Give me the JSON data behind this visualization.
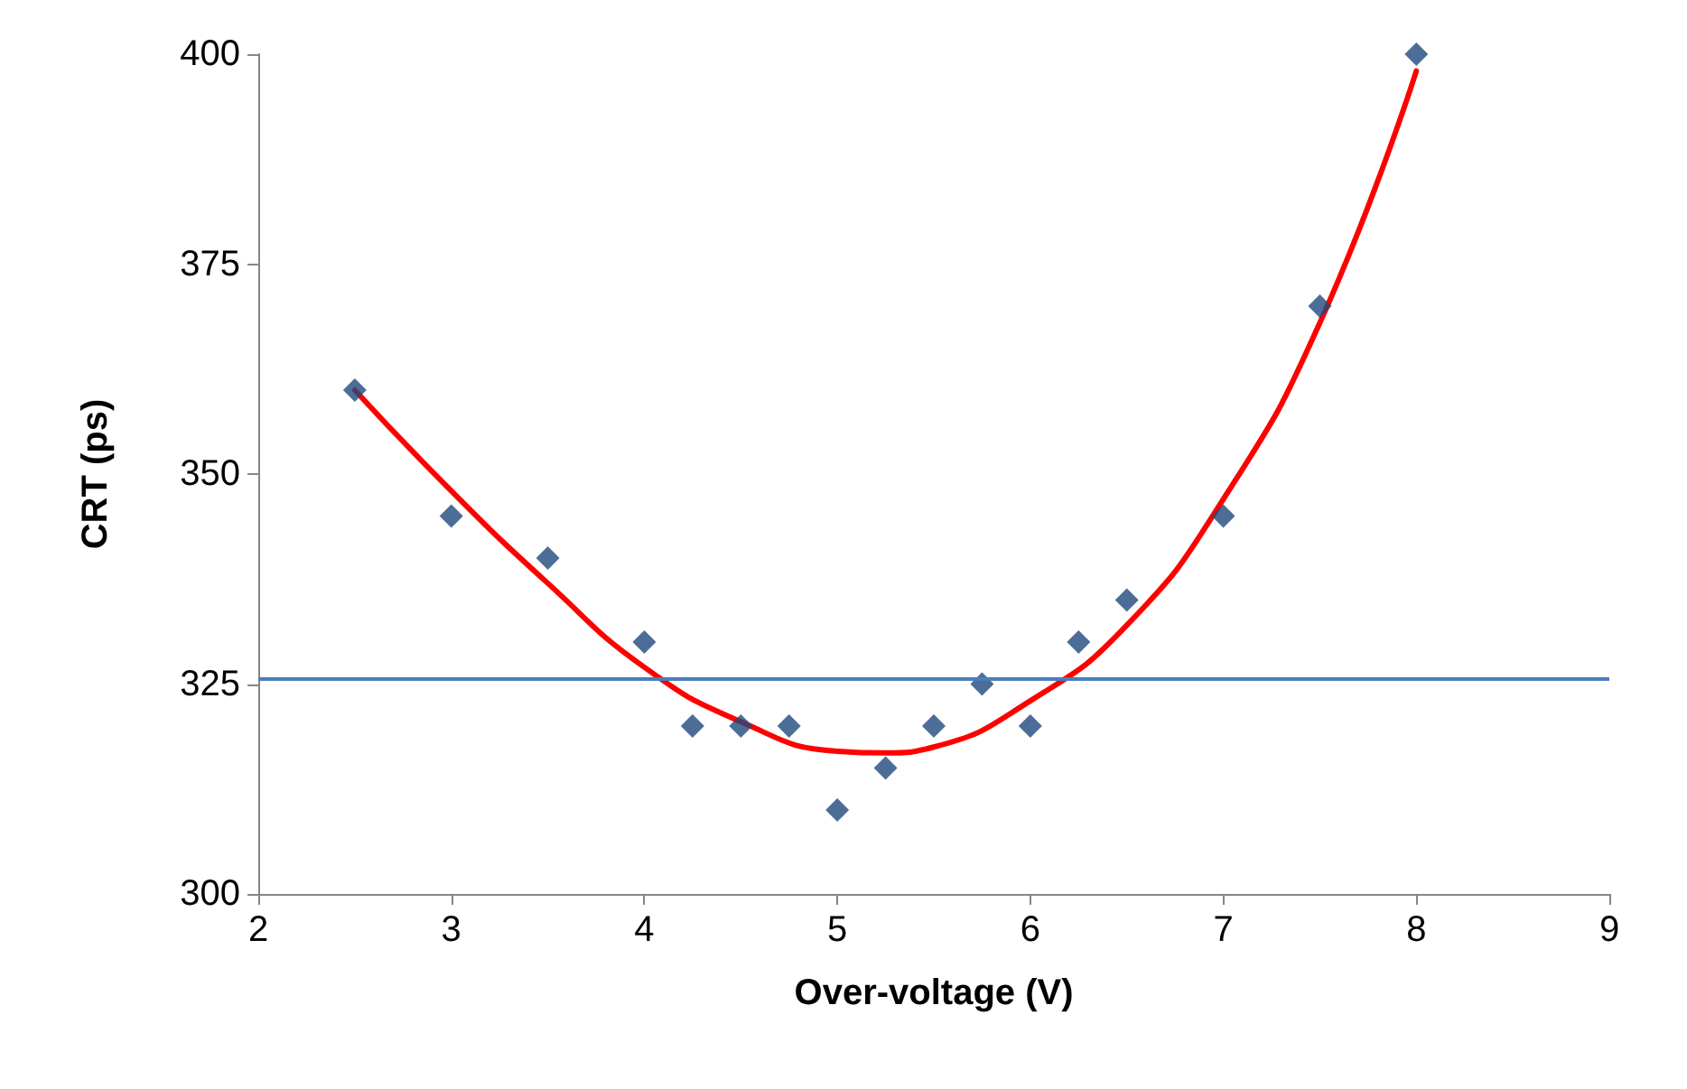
{
  "chart_data": {
    "type": "scatter",
    "xlabel": "Over-voltage (V)",
    "ylabel": "CRT (ps)",
    "xlim": [
      2,
      9
    ],
    "xticks": [
      2,
      3,
      4,
      5,
      6,
      7,
      8,
      9
    ],
    "ylim": [
      300,
      400
    ],
    "yticks": [
      300,
      325,
      350,
      375,
      400
    ],
    "grid": false,
    "series": [
      {
        "marker": "diamond",
        "color": "#1f497d",
        "x": [
          2.5,
          3,
          3.5,
          4,
          4.25,
          4.5,
          4.75,
          5,
          5.25,
          5.5,
          5.75,
          6,
          6.25,
          6.5,
          7,
          7.5,
          8
        ],
        "values": [
          360,
          345,
          340,
          330,
          320,
          320,
          320,
          310,
          315,
          320,
          325,
          320,
          330,
          335,
          345,
          370,
          400
        ]
      },
      {
        "type": "line",
        "marker": "none",
        "line_style": "solid",
        "color": "#ff0000",
        "x": [
          2.5,
          3,
          3.5,
          4,
          4.5,
          5,
          5.25,
          5.5,
          6,
          6.5,
          7,
          7.5,
          8
        ],
        "values": [
          360,
          348,
          337,
          327,
          320.5,
          317,
          316.8,
          317.5,
          323,
          332,
          347,
          368,
          398
        ]
      }
    ],
    "ref_lines": [
      {
        "axis": "y",
        "value": 325.7,
        "color": "#4a7ebb",
        "line_style": "solid"
      }
    ]
  }
}
